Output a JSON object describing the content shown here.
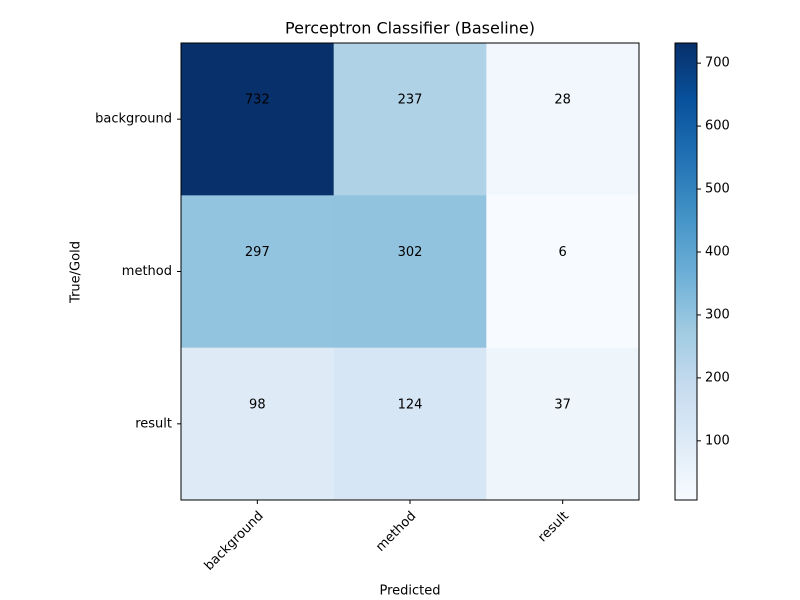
{
  "chart_data": {
    "type": "heatmap",
    "title": "Perceptron Classifier (Baseline)",
    "x_label": "Predicted",
    "y_label": "True/Gold",
    "x_categories": [
      "background",
      "method",
      "result"
    ],
    "y_categories": [
      "background",
      "method",
      "result"
    ],
    "values": [
      [
        732,
        237,
        28
      ],
      [
        297,
        302,
        6
      ],
      [
        98,
        124,
        37
      ]
    ],
    "colormap": "Blues",
    "zlim": [
      6,
      732
    ],
    "zticks": [
      100,
      200,
      300,
      400,
      500,
      600,
      700
    ]
  }
}
